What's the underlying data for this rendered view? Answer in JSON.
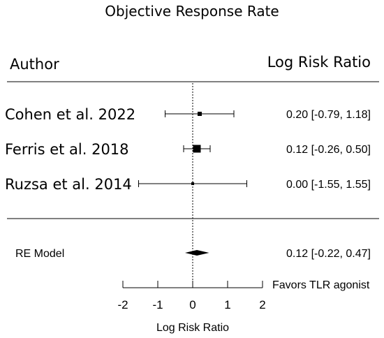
{
  "chart_data": {
    "type": "forest",
    "title": "Objective Response Rate",
    "column_headers": {
      "left": "Author",
      "right": "Log Risk Ratio"
    },
    "studies": [
      {
        "label": "Cohen et al. 2022",
        "estimate": 0.2,
        "lower": -0.79,
        "upper": 1.18,
        "ci_text": "0.20 [-0.79, 1.18]",
        "weight_box": "small"
      },
      {
        "label": "Ferris et al. 2018",
        "estimate": 0.12,
        "lower": -0.26,
        "upper": 0.5,
        "ci_text": "0.12 [-0.26, 0.50]",
        "weight_box": "large"
      },
      {
        "label": "Ruzsa et al. 2014",
        "estimate": 0.0,
        "lower": -1.55,
        "upper": 1.55,
        "ci_text": "0.00 [-1.55, 1.55]",
        "weight_box": "tiny"
      }
    ],
    "summary": {
      "label": "RE Model",
      "estimate": 0.12,
      "lower": -0.22,
      "upper": 0.47,
      "ci_text": "0.12 [-0.22, 0.47]"
    },
    "xaxis": {
      "label": "Log Risk Ratio",
      "ticks": [
        -2,
        -1,
        0,
        1,
        2
      ],
      "xlim": [
        -2,
        2
      ],
      "annotation": "Favors TLR agonist"
    },
    "reference_line": 0
  }
}
